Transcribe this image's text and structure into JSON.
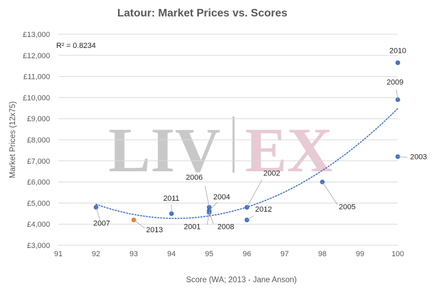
{
  "chart_data": {
    "type": "scatter",
    "title": "Latour: Market Prices vs. Scores",
    "xlabel": "Score (WA; 2013 - Jane Anson)",
    "ylabel": "Market Prices (12x75)",
    "xlim": [
      91,
      100
    ],
    "ylim": [
      3000,
      13000
    ],
    "x_ticks": [
      "91",
      "92",
      "93",
      "94",
      "95",
      "96",
      "97",
      "98",
      "99",
      "100"
    ],
    "y_ticks": [
      "£3,000",
      "£4,000",
      "£5,000",
      "£6,000",
      "£7,000",
      "£8,000",
      "£9,000",
      "£10,000",
      "£11,000",
      "£12,000",
      "£13,000"
    ],
    "grid": "horizontal",
    "r_squared_label": "R² = 0.8234",
    "trendline": {
      "type": "polynomial",
      "style": "dotted",
      "x_range": [
        92,
        100
      ]
    },
    "watermark": {
      "left": "LIV",
      "right": "EX"
    },
    "colors": {
      "points": "#4472c4",
      "highlight": "#ed7d31",
      "trend": "#4472c4",
      "grid": "#d9d9d9"
    },
    "points": [
      {
        "label": "2010",
        "x": 100,
        "y": 11650
      },
      {
        "label": "2009",
        "x": 100,
        "y": 9900
      },
      {
        "label": "2003",
        "x": 100,
        "y": 7200
      },
      {
        "label": "2005",
        "x": 98,
        "y": 6000
      },
      {
        "label": "2002",
        "x": 96,
        "y": 4800
      },
      {
        "label": "2012",
        "x": 96,
        "y": 4200
      },
      {
        "label": "2006",
        "x": 95,
        "y": 4800
      },
      {
        "label": "2004",
        "x": 95,
        "y": 4650
      },
      {
        "label": "2001",
        "x": 95,
        "y": 4550
      },
      {
        "label": "2008",
        "x": 95,
        "y": 4600
      },
      {
        "label": "2011",
        "x": 94,
        "y": 4500
      },
      {
        "label": "2007",
        "x": 92,
        "y": 4800
      },
      {
        "label": "2013",
        "x": 93,
        "y": 4200,
        "highlight": true
      }
    ]
  }
}
